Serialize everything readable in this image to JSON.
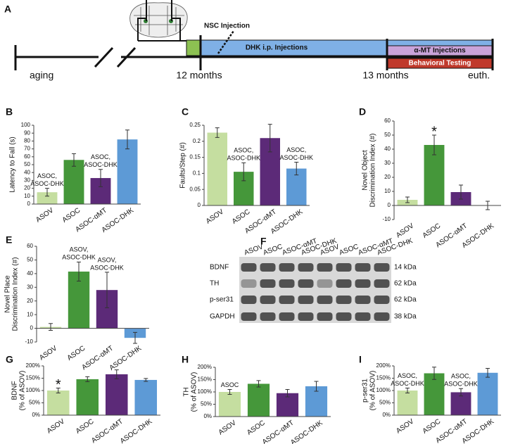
{
  "timeline": {
    "label": "A",
    "aging": "aging",
    "month12": "12 months",
    "month13": "13 months",
    "euth": "euth.",
    "nsc": "NSC Injection",
    "dhk": "DHK i.p. Injections",
    "amt": "α-MT Injections",
    "behavior": "Behavioral Testing"
  },
  "blot": {
    "label": "F",
    "lanes": [
      "ASOV",
      "ASOC",
      "ASOC-αMT",
      "ASOC-DHK",
      "ASOV",
      "ASOC",
      "ASOC-αMT",
      "ASOC-DHK"
    ],
    "rows": [
      "BDNF",
      "TH",
      "p-ser31",
      "GAPDH"
    ],
    "sizes": [
      "14 kDa",
      "62 kDa",
      "62 kDa",
      "38 kDa"
    ]
  },
  "chart_data": [
    {
      "type": "bar",
      "label": "B",
      "ylabel": [
        "Latency to Fall (s)"
      ],
      "categories": [
        "ASOV",
        "ASOC",
        "ASOC-αMT",
        "ASOC-DHK"
      ],
      "values": [
        15,
        56,
        33,
        82
      ],
      "errors": [
        5,
        8,
        11,
        12
      ],
      "colors": [
        "#c5dea0",
        "#45973a",
        "#5c2a78",
        "#5d9ad6"
      ],
      "annotations": [
        [
          "ASOC,",
          "ASOC-DHK"
        ],
        null,
        [
          "ASOC,",
          "ASOC-DHK"
        ],
        null
      ],
      "ylim": [
        0,
        100
      ],
      "yticks": [
        0,
        10,
        20,
        30,
        40,
        50,
        60,
        70,
        80,
        90,
        100
      ]
    },
    {
      "type": "bar",
      "label": "C",
      "ylabel": [
        "Faults/Step (#)"
      ],
      "categories": [
        "ASOV",
        "ASOC",
        "ASOC-αMT",
        "ASOC-DHK"
      ],
      "values": [
        0.227,
        0.105,
        0.21,
        0.115
      ],
      "errors": [
        0.015,
        0.028,
        0.043,
        0.02
      ],
      "colors": [
        "#c5dea0",
        "#45973a",
        "#5c2a78",
        "#5d9ad6"
      ],
      "annotations": [
        null,
        [
          "ASOC,",
          "ASOC-DHK"
        ],
        null,
        [
          "ASOC,",
          "ASOC-DHK"
        ]
      ],
      "ylim": [
        0,
        0.25
      ],
      "yticks": [
        0,
        0.05,
        0.1,
        0.15,
        0.2,
        0.25
      ]
    },
    {
      "type": "bar",
      "label": "D",
      "ylabel": [
        "Novel Object",
        "Discrimination Index (#)"
      ],
      "categories": [
        "ASOV",
        "ASOC",
        "ASOC-αMT",
        "ASOC-DHK"
      ],
      "values": [
        4,
        43,
        9.5,
        0
      ],
      "errors": [
        2,
        7,
        5,
        3
      ],
      "colors": [
        "#c5dea0",
        "#45973a",
        "#5c2a78",
        "#5d9ad6"
      ],
      "annotations": [
        null,
        [
          "*"
        ],
        null,
        null
      ],
      "ylim": [
        -10,
        60
      ],
      "yticks": [
        -10,
        0,
        10,
        20,
        30,
        40,
        50,
        60
      ]
    },
    {
      "type": "bar",
      "label": "E",
      "ylabel": [
        "Novel Place",
        "Discrimination Index (#)"
      ],
      "categories": [
        "ASOV",
        "ASOC",
        "ASOC-αMT",
        "ASOC-DHK"
      ],
      "values": [
        1,
        41.5,
        28,
        -7
      ],
      "errors": [
        2.5,
        7,
        13,
        4
      ],
      "colors": [
        "#c5dea0",
        "#45973a",
        "#5c2a78",
        "#5d9ad6"
      ],
      "annotations": [
        null,
        [
          "ASOV,",
          "ASOC-DHK"
        ],
        [
          "ASOV,",
          "ASOC-DHK"
        ],
        null
      ],
      "ylim": [
        -10,
        60
      ],
      "yticks": [
        -10,
        0,
        10,
        20,
        30,
        40,
        50,
        60
      ]
    },
    {
      "type": "bar",
      "label": "G",
      "ylabel": [
        "BDNF",
        "(% of ASOV)"
      ],
      "categories": [
        "ASOV",
        "ASOC",
        "ASOC-αMT",
        "ASOC-DHK"
      ],
      "values": [
        100,
        146,
        166,
        143
      ],
      "errors": [
        10,
        10,
        18,
        6
      ],
      "colors": [
        "#c5dea0",
        "#45973a",
        "#5c2a78",
        "#5d9ad6"
      ],
      "annotations": [
        [
          "*"
        ],
        null,
        null,
        null
      ],
      "ylim": [
        0,
        200
      ],
      "yticks": [
        {
          "value": 0,
          "label": "0%"
        },
        {
          "value": 50,
          "label": "50%"
        },
        {
          "value": 100,
          "label": "100%"
        },
        {
          "value": 150,
          "label": "150%"
        },
        {
          "value": 200,
          "label": "200%"
        }
      ]
    },
    {
      "type": "bar",
      "label": "H",
      "ylabel": [
        "TH",
        "(% of ASOV)"
      ],
      "categories": [
        "ASOV",
        "ASOC",
        "ASOC-αMT",
        "ASOC-DHK"
      ],
      "values": [
        100,
        133,
        95,
        123
      ],
      "errors": [
        10,
        13,
        15,
        20
      ],
      "colors": [
        "#c5dea0",
        "#45973a",
        "#5c2a78",
        "#5d9ad6"
      ],
      "annotations": [
        [
          "ASOC"
        ],
        null,
        null,
        null
      ],
      "ylim": [
        0,
        200
      ],
      "yticks": [
        {
          "value": 0,
          "label": "0%"
        },
        {
          "value": 50,
          "label": "50%"
        },
        {
          "value": 100,
          "label": "100%"
        },
        {
          "value": 150,
          "label": "150%"
        },
        {
          "value": 200,
          "label": "200%"
        }
      ]
    },
    {
      "type": "bar",
      "label": "I",
      "ylabel": [
        "p-ser31",
        "(% of ASOV)"
      ],
      "categories": [
        "ASOV",
        "ASOC",
        "ASOC-αMT",
        "ASOC-DHK"
      ],
      "values": [
        100,
        170,
        93,
        172
      ],
      "errors": [
        10,
        25,
        15,
        18
      ],
      "colors": [
        "#c5dea0",
        "#45973a",
        "#5c2a78",
        "#5d9ad6"
      ],
      "annotations": [
        [
          "ASOC,",
          "ASOC-DHK"
        ],
        null,
        [
          "ASOC,",
          "ASOC-DHK"
        ],
        null
      ],
      "ylim": [
        0,
        200
      ],
      "yticks": [
        {
          "value": 0,
          "label": "0%"
        },
        {
          "value": 50,
          "label": "50%"
        },
        {
          "value": 100,
          "label": "100%"
        },
        {
          "value": 150,
          "label": "150%"
        },
        {
          "value": 200,
          "label": "200%"
        }
      ]
    }
  ]
}
